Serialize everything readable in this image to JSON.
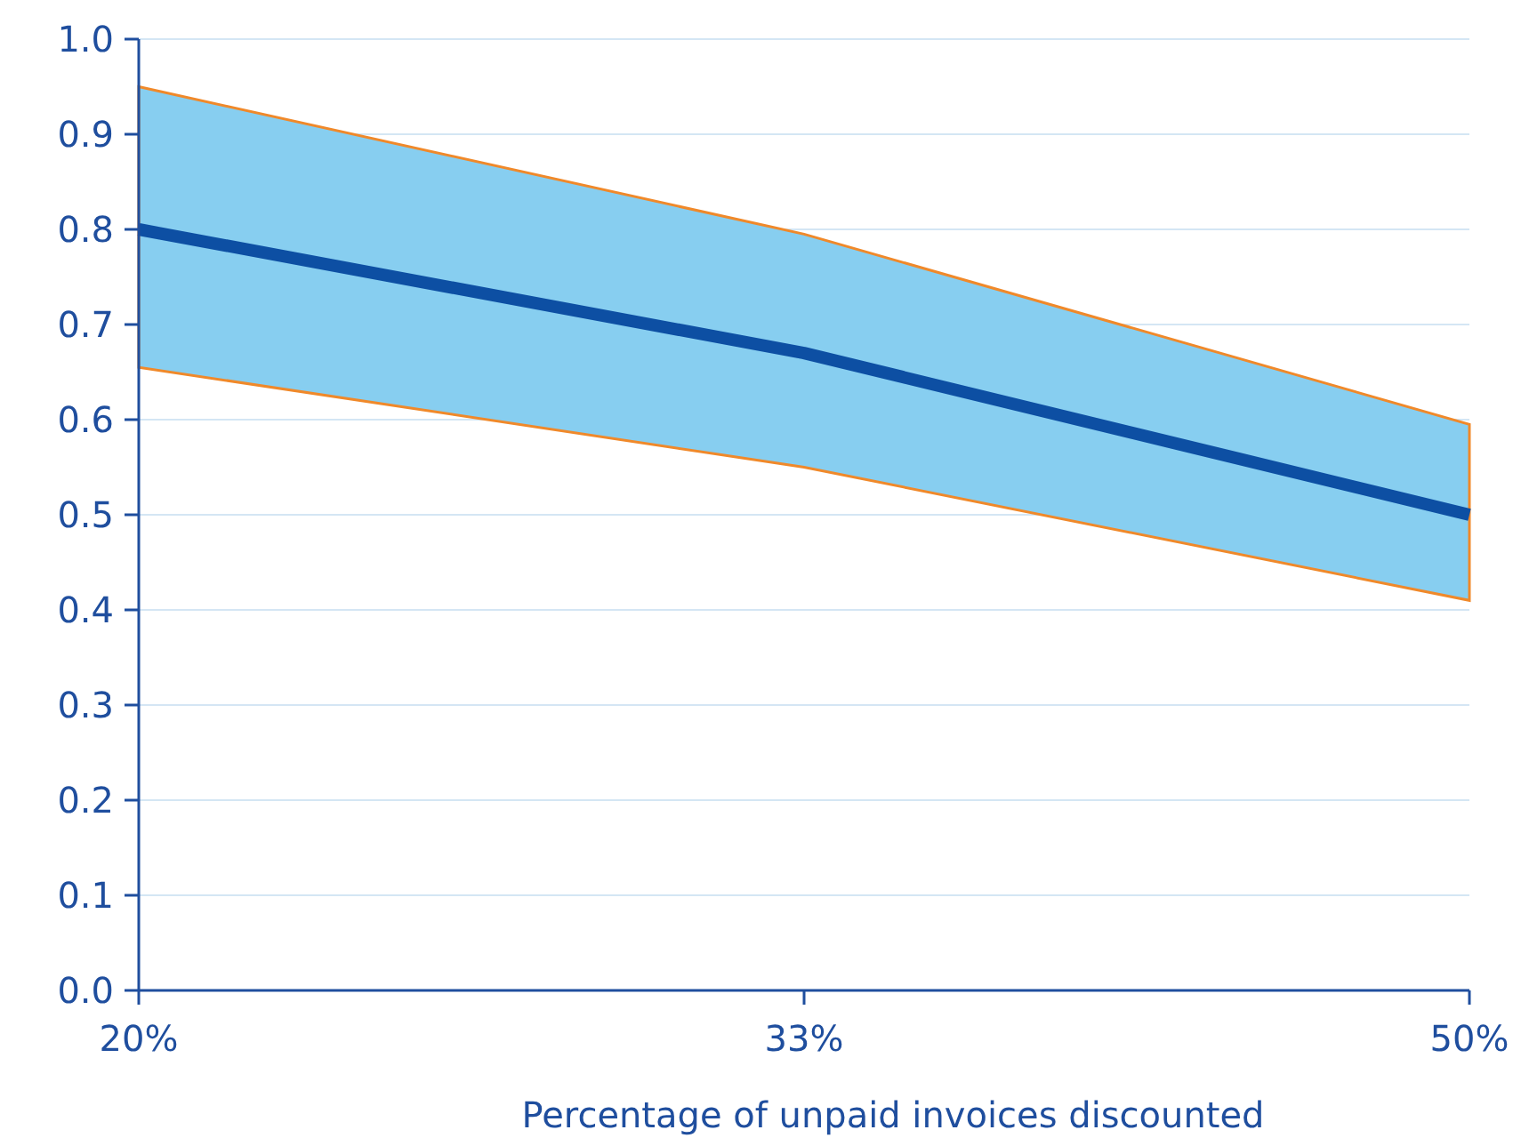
{
  "chart_data": {
    "type": "line",
    "xlabel": "Percentage of unpaid invoices discounted",
    "categories": [
      "20%",
      "33%",
      "50%"
    ],
    "series": [
      {
        "color": "#0d4fa3",
        "values": [
          0.8,
          0.67,
          0.5
        ],
        "lower": [
          0.655,
          0.55,
          0.41
        ],
        "upper": [
          0.95,
          0.795,
          0.595
        ]
      }
    ],
    "ylim": [
      0,
      1
    ],
    "yticks": [
      {
        "value": 0,
        "label": "0.0"
      },
      0.1,
      0.2,
      0.3,
      0.4,
      0.5,
      0.6,
      0.7,
      0.8,
      0.9,
      {
        "value": 1,
        "label": "1.0"
      }
    ],
    "grid": "y",
    "marker": "none",
    "line_style": "solid"
  }
}
